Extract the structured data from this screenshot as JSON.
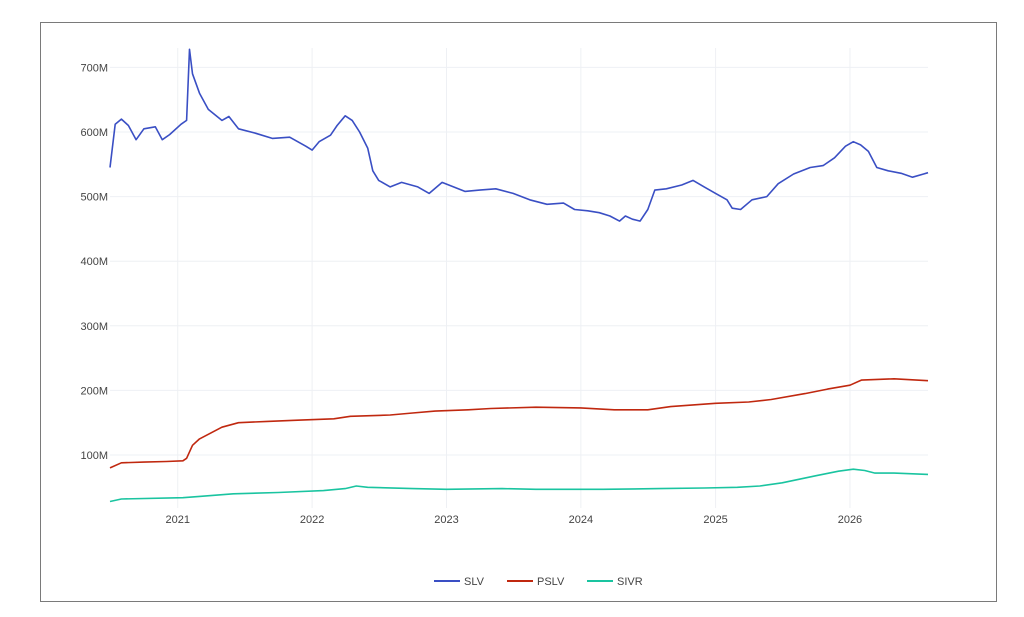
{
  "chart_data": {
    "type": "line",
    "title": "",
    "xlabel": "",
    "ylabel": "",
    "xlim": [
      "2020-07-01",
      "2026-08-01"
    ],
    "ylim": [
      18,
      730
    ],
    "y_unit": "M",
    "x_ticks": [
      "2021",
      "2022",
      "2023",
      "2024",
      "2025",
      "2026"
    ],
    "y_ticks": [
      "100M",
      "200M",
      "300M",
      "400M",
      "500M",
      "600M",
      "700M"
    ],
    "y_tick_values": [
      100,
      200,
      300,
      400,
      500,
      600,
      700
    ],
    "grid": true,
    "legend": "bottom-center",
    "series": [
      {
        "name": "SLV",
        "color": "#3a4fc4",
        "points": [
          [
            "2020-07-01",
            545
          ],
          [
            "2020-07-15",
            612
          ],
          [
            "2020-08-01",
            620
          ],
          [
            "2020-08-20",
            610
          ],
          [
            "2020-09-10",
            588
          ],
          [
            "2020-10-01",
            605
          ],
          [
            "2020-11-01",
            608
          ],
          [
            "2020-11-20",
            588
          ],
          [
            "2020-12-10",
            596
          ],
          [
            "2021-01-10",
            612
          ],
          [
            "2021-01-25",
            618
          ],
          [
            "2021-02-02",
            728
          ],
          [
            "2021-02-10",
            690
          ],
          [
            "2021-03-01",
            660
          ],
          [
            "2021-03-25",
            635
          ],
          [
            "2021-05-01",
            618
          ],
          [
            "2021-05-20",
            624
          ],
          [
            "2021-06-15",
            605
          ],
          [
            "2021-08-01",
            598
          ],
          [
            "2021-09-15",
            590
          ],
          [
            "2021-11-01",
            592
          ],
          [
            "2021-12-15",
            578
          ],
          [
            "2022-01-01",
            572
          ],
          [
            "2022-01-20",
            585
          ],
          [
            "2022-02-20",
            595
          ],
          [
            "2022-03-10",
            610
          ],
          [
            "2022-04-01",
            625
          ],
          [
            "2022-04-20",
            618
          ],
          [
            "2022-05-10",
            600
          ],
          [
            "2022-06-01",
            575
          ],
          [
            "2022-06-15",
            540
          ],
          [
            "2022-07-01",
            525
          ],
          [
            "2022-08-01",
            515
          ],
          [
            "2022-09-01",
            522
          ],
          [
            "2022-10-15",
            515
          ],
          [
            "2022-11-15",
            505
          ],
          [
            "2022-12-20",
            522
          ],
          [
            "2023-01-20",
            515
          ],
          [
            "2023-02-20",
            508
          ],
          [
            "2023-04-01",
            510
          ],
          [
            "2023-05-15",
            512
          ],
          [
            "2023-07-01",
            505
          ],
          [
            "2023-08-15",
            495
          ],
          [
            "2023-10-01",
            488
          ],
          [
            "2023-11-15",
            490
          ],
          [
            "2023-12-15",
            480
          ],
          [
            "2024-01-20",
            478
          ],
          [
            "2024-02-20",
            475
          ],
          [
            "2024-03-20",
            470
          ],
          [
            "2024-04-15",
            462
          ],
          [
            "2024-05-01",
            470
          ],
          [
            "2024-05-20",
            465
          ],
          [
            "2024-06-10",
            462
          ],
          [
            "2024-07-01",
            480
          ],
          [
            "2024-07-20",
            510
          ],
          [
            "2024-08-20",
            512
          ],
          [
            "2024-10-01",
            518
          ],
          [
            "2024-11-01",
            525
          ],
          [
            "2024-12-01",
            515
          ],
          [
            "2025-01-01",
            505
          ],
          [
            "2025-02-01",
            495
          ],
          [
            "2025-02-15",
            482
          ],
          [
            "2025-03-10",
            480
          ],
          [
            "2025-04-10",
            495
          ],
          [
            "2025-05-20",
            500
          ],
          [
            "2025-06-20",
            520
          ],
          [
            "2025-08-01",
            535
          ],
          [
            "2025-09-15",
            545
          ],
          [
            "2025-10-20",
            548
          ],
          [
            "2025-11-20",
            560
          ],
          [
            "2025-12-20",
            578
          ],
          [
            "2026-01-10",
            585
          ],
          [
            "2026-01-30",
            580
          ],
          [
            "2026-02-20",
            570
          ],
          [
            "2026-03-15",
            545
          ],
          [
            "2026-04-15",
            540
          ],
          [
            "2026-05-20",
            536
          ],
          [
            "2026-06-20",
            530
          ],
          [
            "2026-07-20",
            535
          ],
          [
            "2026-08-01",
            537
          ]
        ]
      },
      {
        "name": "PSLV",
        "color": "#c0280f",
        "points": [
          [
            "2020-07-01",
            80
          ],
          [
            "2020-08-01",
            88
          ],
          [
            "2020-10-01",
            89
          ],
          [
            "2020-12-01",
            90
          ],
          [
            "2021-01-15",
            91
          ],
          [
            "2021-01-25",
            95
          ],
          [
            "2021-02-10",
            115
          ],
          [
            "2021-03-01",
            125
          ],
          [
            "2021-05-01",
            143
          ],
          [
            "2021-06-15",
            150
          ],
          [
            "2021-09-01",
            152
          ],
          [
            "2021-12-01",
            154
          ],
          [
            "2022-03-01",
            156
          ],
          [
            "2022-04-15",
            160
          ],
          [
            "2022-08-01",
            162
          ],
          [
            "2022-10-01",
            165
          ],
          [
            "2022-12-01",
            168
          ],
          [
            "2023-03-01",
            170
          ],
          [
            "2023-05-01",
            172
          ],
          [
            "2023-09-01",
            174
          ],
          [
            "2024-01-01",
            173
          ],
          [
            "2024-04-01",
            170
          ],
          [
            "2024-07-01",
            170
          ],
          [
            "2024-09-01",
            175
          ],
          [
            "2025-01-01",
            180
          ],
          [
            "2025-04-01",
            182
          ],
          [
            "2025-06-01",
            186
          ],
          [
            "2025-09-01",
            195
          ],
          [
            "2025-11-01",
            202
          ],
          [
            "2026-01-01",
            208
          ],
          [
            "2026-02-01",
            216
          ],
          [
            "2026-05-01",
            218
          ],
          [
            "2026-06-01",
            217
          ],
          [
            "2026-08-01",
            215
          ]
        ]
      },
      {
        "name": "SIVR",
        "color": "#1ac4a0",
        "points": [
          [
            "2020-07-01",
            28
          ],
          [
            "2020-08-01",
            32
          ],
          [
            "2021-01-15",
            34
          ],
          [
            "2021-03-01",
            36
          ],
          [
            "2021-06-01",
            40
          ],
          [
            "2021-10-01",
            42
          ],
          [
            "2022-02-01",
            45
          ],
          [
            "2022-04-01",
            48
          ],
          [
            "2022-05-01",
            52
          ],
          [
            "2022-06-01",
            50
          ],
          [
            "2022-10-01",
            48
          ],
          [
            "2023-01-01",
            47
          ],
          [
            "2023-06-01",
            48
          ],
          [
            "2023-09-01",
            47
          ],
          [
            "2024-03-01",
            47
          ],
          [
            "2024-08-01",
            48
          ],
          [
            "2024-12-01",
            49
          ],
          [
            "2025-03-01",
            50
          ],
          [
            "2025-05-01",
            52
          ],
          [
            "2025-07-01",
            57
          ],
          [
            "2025-10-01",
            68
          ],
          [
            "2025-12-01",
            75
          ],
          [
            "2026-01-10",
            78
          ],
          [
            "2026-02-10",
            76
          ],
          [
            "2026-03-10",
            72
          ],
          [
            "2026-05-01",
            72
          ],
          [
            "2026-08-01",
            70
          ]
        ]
      }
    ]
  }
}
